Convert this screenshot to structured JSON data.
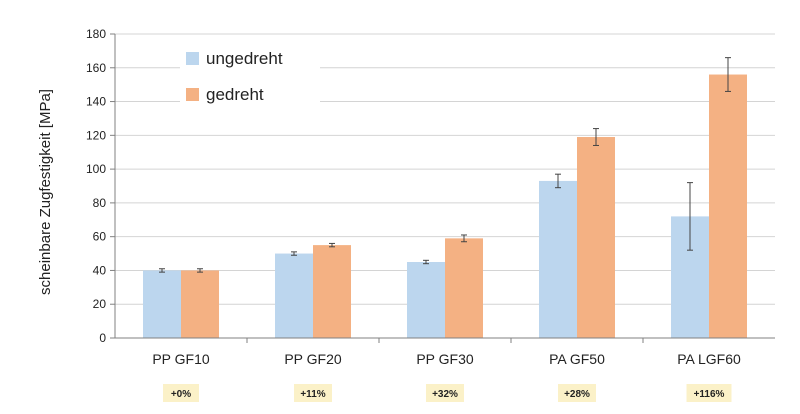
{
  "chart_data": {
    "type": "bar",
    "categories": [
      "PP GF10",
      "PP GF20",
      "PP GF30",
      "PA GF50",
      "PA LGF60"
    ],
    "series": [
      {
        "name": "ungedreht",
        "color": "#bcd6ee",
        "values": [
          40,
          50,
          45,
          93,
          72
        ],
        "errors": [
          1,
          1,
          1,
          4,
          20
        ]
      },
      {
        "name": "gedreht",
        "color": "#f4b183",
        "values": [
          40,
          55,
          59,
          119,
          156
        ],
        "errors": [
          1,
          1,
          2,
          5,
          10
        ]
      }
    ],
    "ylabel": "scheinbare Zugfestigkeit [MPa]",
    "ylim": [
      0,
      180
    ],
    "yticks": [
      0,
      20,
      40,
      60,
      80,
      100,
      120,
      140,
      160,
      180
    ],
    "grid": true,
    "legend_position": "top-left",
    "annotations": [
      "+0%",
      "+11%",
      "+32%",
      "+28%",
      "+116%"
    ],
    "annotation_color": "#fbf1c8"
  }
}
